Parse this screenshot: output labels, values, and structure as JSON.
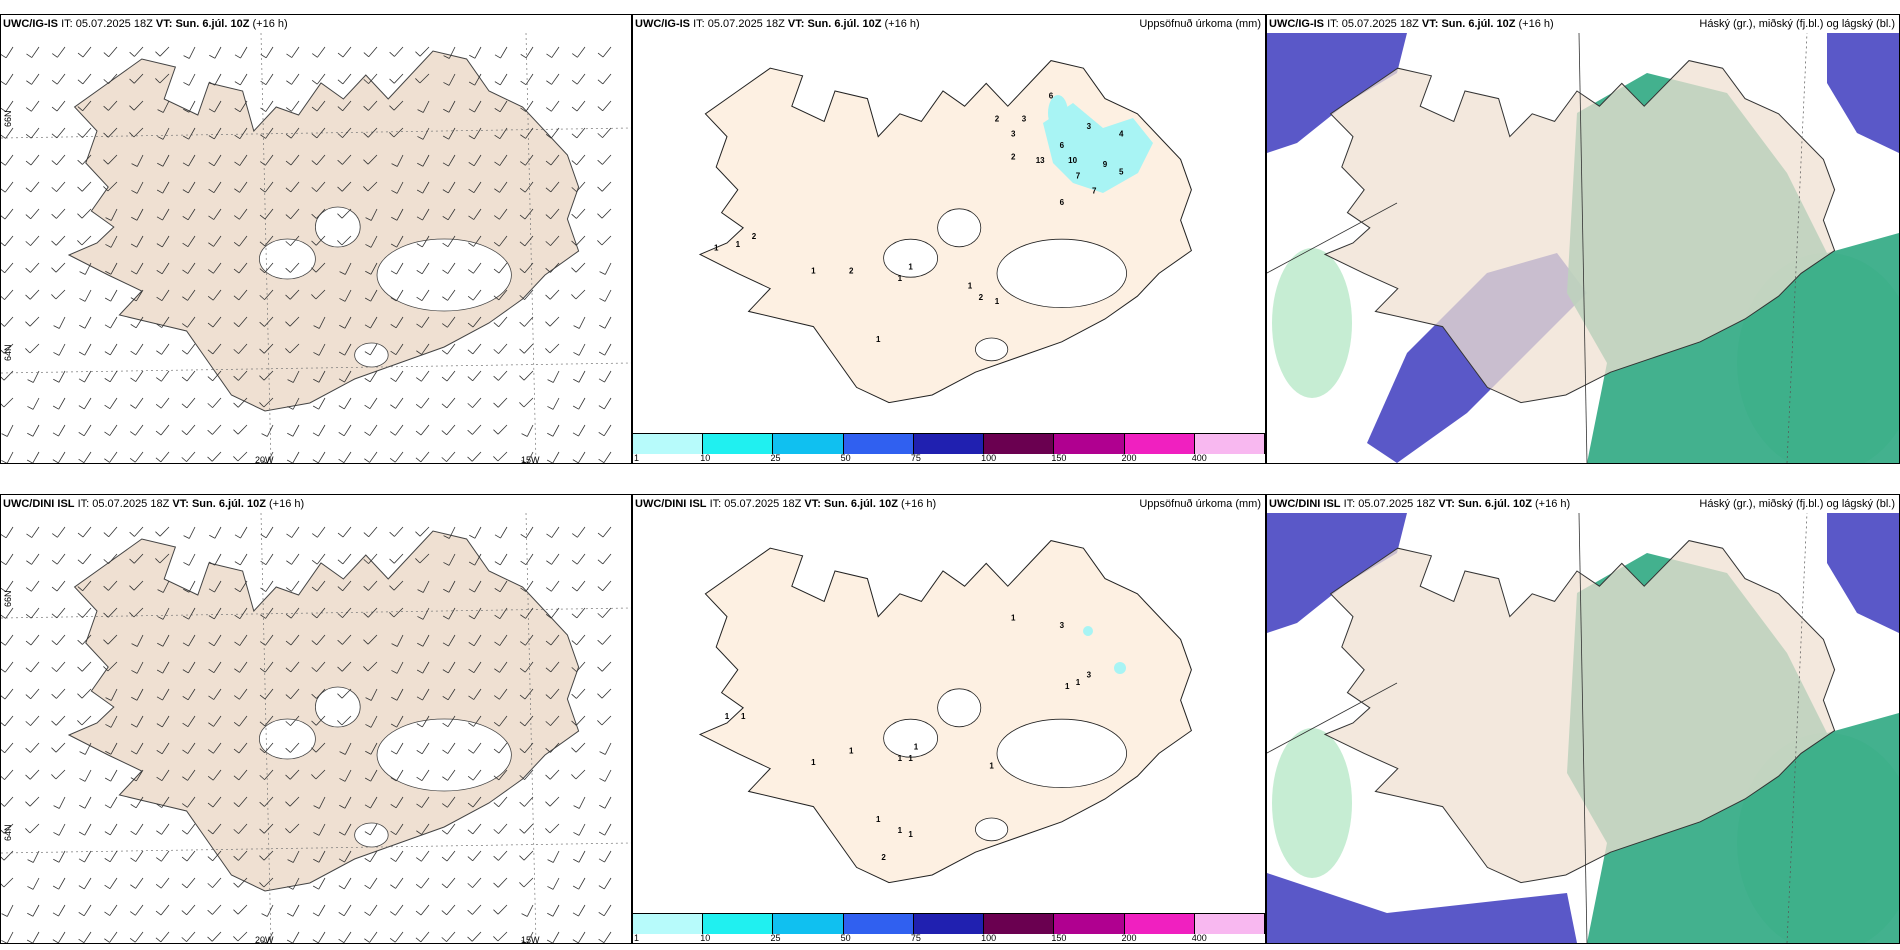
{
  "rows": [
    {
      "model": "UWC/IG-IS",
      "it_label": "IT:",
      "it_value": "05.07.2025 18Z",
      "vt_label": "VT:",
      "vt_value": "Sun. 6.júl. 10Z",
      "lead": "(+16 h)",
      "precip_numbers": [
        "6",
        "2",
        "3",
        "3",
        "3",
        "4",
        "6",
        "2",
        "13",
        "10",
        "9",
        "5",
        "7",
        "7",
        "6",
        "2",
        "1",
        "1",
        "1",
        "2",
        "1",
        "1",
        "1",
        "2",
        "1",
        "1"
      ]
    },
    {
      "model": "UWC/DINI ISL",
      "it_label": "IT:",
      "it_value": "05.07.2025 18Z",
      "vt_label": "VT:",
      "vt_value": "Sun. 6.júl. 10Z",
      "lead": "(+16 h)",
      "precip_numbers": [
        "1",
        "3",
        "3",
        "1",
        "1",
        "1",
        "1",
        "1",
        "1",
        "1",
        "1",
        "1",
        "1",
        "1",
        "1",
        "1",
        "2"
      ]
    }
  ],
  "precip_title": "Uppsöfnuð úrkoma (mm)",
  "cloud_title": "Háský (gr.), miðský (fj.bl.) og lágský (bl.)",
  "lon_labels": [
    "20W",
    "15W"
  ],
  "lat_labels": [
    "66N",
    "64N"
  ],
  "colorbar": {
    "ticks": [
      "1",
      "10",
      "25",
      "50",
      "75",
      "100",
      "150",
      "200",
      "400"
    ],
    "colors": [
      "#b7fbfb",
      "#20f0f0",
      "#10c0f0",
      "#3060f0",
      "#2020b0",
      "#6a0050",
      "#b00090",
      "#f020c0",
      "#f8b8f0"
    ]
  },
  "colors": {
    "land": "#efe0d2",
    "land_precip": "#fdf0e2",
    "precip_blue": "#a8f4f4",
    "low_cloud": "#5a58c8",
    "mid_cloud": "#2fa882",
    "high_cloud": "#b8e8c8"
  }
}
